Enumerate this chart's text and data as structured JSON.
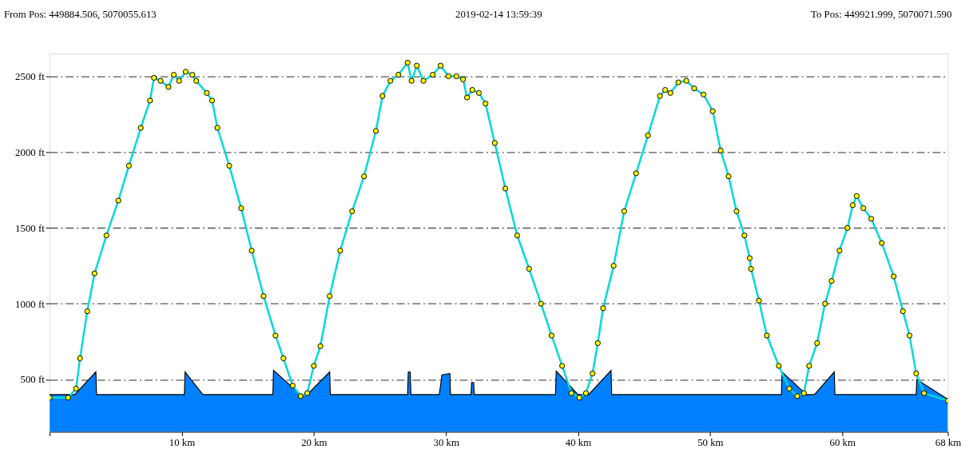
{
  "chart_data": {
    "type": "line",
    "title": "2019-02-14 13:59:39",
    "annotations": [
      "From Pos: 449884.506, 5070055.613",
      "To Pos: 449921.999, 5070071.590"
    ],
    "xlim": [
      0,
      68
    ],
    "ylim": [
      155,
      2650
    ],
    "xticks": [
      {
        "value": 0,
        "label": null
      },
      {
        "value": 10,
        "label": "10 km"
      },
      {
        "value": 20,
        "label": "20 km"
      },
      {
        "value": 30,
        "label": "30 km"
      },
      {
        "value": 40,
        "label": "40 km"
      },
      {
        "value": 50,
        "label": "50 km"
      },
      {
        "value": 60,
        "label": "60 km"
      },
      {
        "value": 68,
        "label": "68 km"
      }
    ],
    "yticks": [
      {
        "value": 500,
        "label": "500 ft"
      },
      {
        "value": 1000,
        "label": "1000 ft"
      },
      {
        "value": 1500,
        "label": "1500 ft"
      },
      {
        "value": 2000,
        "label": "2000 ft"
      },
      {
        "value": 2500,
        "label": "2500 ft"
      }
    ],
    "grid": "y",
    "line_style": "solid",
    "series": [
      {
        "type": "area",
        "color": "#0080ff",
        "x": [
          0,
          1.9,
          3.5,
          3.55,
          10.2,
          10.25,
          11.6,
          16.9,
          16.95,
          19.0,
          19.5,
          21.2,
          21.25,
          27.1,
          27.15,
          27.3,
          27.35,
          29.5,
          29.7,
          30.3,
          30.35,
          31.9,
          31.95,
          32.1,
          32.15,
          38.3,
          38.35,
          40.0,
          40.8,
          42.5,
          42.55,
          55.4,
          55.45,
          57.3,
          57.9,
          59.4,
          59.45,
          65.6,
          65.65,
          68
        ],
        "values": [
          400,
          400,
          550,
          400,
          400,
          550,
          400,
          400,
          560,
          400,
          400,
          550,
          400,
          400,
          550,
          550,
          400,
          400,
          530,
          540,
          400,
          400,
          480,
          480,
          400,
          400,
          555,
          400,
          400,
          560,
          400,
          400,
          550,
          400,
          400,
          550,
          400,
          400,
          500,
          370
        ]
      },
      {
        "marker": "circle",
        "color": "#00d8d8",
        "x": [
          0,
          1.4,
          2.0,
          2.3,
          2.85,
          3.4,
          4.3,
          5.2,
          6.0,
          6.9,
          7.6,
          7.9,
          8.4,
          9.0,
          9.4,
          9.8,
          10.3,
          10.8,
          11.1,
          11.9,
          12.3,
          12.7,
          13.6,
          14.5,
          15.3,
          16.2,
          17.1,
          17.7,
          18.4,
          19.0,
          19.5,
          20.0,
          20.5,
          21.2,
          22.0,
          22.9,
          23.8,
          24.7,
          25.2,
          25.8,
          26.4,
          27.1,
          27.4,
          27.8,
          28.3,
          29.0,
          29.6,
          30.2,
          30.8,
          31.3,
          31.6,
          32.0,
          32.5,
          33.0,
          33.7,
          34.5,
          35.4,
          36.3,
          37.2,
          38.0,
          38.8,
          39.5,
          40.1,
          40.6,
          41.1,
          41.5,
          41.9,
          42.7,
          43.5,
          44.4,
          45.3,
          46.2,
          46.6,
          47.0,
          47.6,
          48.2,
          48.8,
          49.5,
          50.2,
          50.8,
          51.4,
          52.0,
          52.6,
          53.0,
          53.1,
          53.7,
          54.3,
          55.2,
          56.0,
          56.6,
          57.1,
          57.5,
          58.1,
          58.7,
          59.2,
          59.8,
          60.4,
          60.8,
          61.1,
          61.6,
          62.2,
          63.0,
          63.9,
          64.6,
          65.1,
          65.6,
          66.2,
          68
        ],
        "values": [
          380,
          380,
          440,
          640,
          950,
          1200,
          1450,
          1680,
          1910,
          2160,
          2340,
          2490,
          2470,
          2430,
          2510,
          2470,
          2530,
          2510,
          2470,
          2390,
          2340,
          2160,
          1910,
          1630,
          1350,
          1050,
          790,
          640,
          460,
          390,
          410,
          590,
          720,
          1050,
          1350,
          1610,
          1840,
          2140,
          2370,
          2470,
          2510,
          2590,
          2470,
          2570,
          2470,
          2510,
          2570,
          2500,
          2500,
          2480,
          2360,
          2410,
          2390,
          2320,
          2060,
          1760,
          1450,
          1230,
          1000,
          790,
          590,
          410,
          380,
          410,
          540,
          740,
          970,
          1250,
          1610,
          1860,
          2110,
          2370,
          2410,
          2390,
          2460,
          2470,
          2420,
          2380,
          2270,
          2010,
          1840,
          1610,
          1450,
          1300,
          1230,
          1020,
          790,
          590,
          440,
          390,
          410,
          590,
          740,
          1000,
          1150,
          1350,
          1500,
          1650,
          1710,
          1630,
          1560,
          1400,
          1180,
          950,
          790,
          540,
          410,
          360
        ]
      }
    ]
  }
}
